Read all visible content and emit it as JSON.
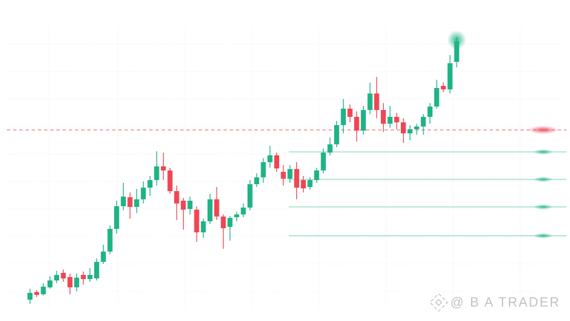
{
  "chart_data": {
    "type": "candlestick",
    "watermark": "@ B A TRADER",
    "xlim": [
      -4.5,
      81
    ],
    "xticks": [
      2.9,
      13.2,
      23.3,
      33.3,
      43.3,
      53.4,
      63.5,
      73.5
    ],
    "ylim": [
      5,
      111
    ],
    "yticks": [
      10,
      20,
      30,
      40,
      50,
      60,
      70,
      80,
      90,
      100
    ],
    "grid": true,
    "up_color": "#1fb386",
    "down_color": "#ef4654",
    "open": [
      7,
      9.75,
      9,
      11.5,
      14,
      16.75,
      15.25,
      11.5,
      16,
      14.5,
      14.75,
      20.75,
      24.5,
      32.75,
      41,
      44.25,
      40.75,
      43.5,
      47.75,
      50.5,
      55.5,
      54,
      46.5,
      43,
      40,
      39.75,
      31.5,
      35.5,
      43.5,
      37.25,
      33.5,
      37,
      38,
      40.5,
      49,
      51.5,
      57,
      59.5,
      53.5,
      51,
      54.5,
      50.5,
      48,
      50.5,
      54,
      60.5,
      63.5,
      70.5,
      76.5,
      73.5,
      68.5,
      76,
      82,
      76,
      71,
      73.5,
      71.5,
      67.5,
      69,
      70,
      73.5,
      77.25,
      84.75,
      83.5,
      93.5
    ],
    "high": [
      11,
      10.5,
      13,
      15.5,
      17.5,
      18,
      16.5,
      16.5,
      17.25,
      18.5,
      22,
      27,
      34,
      43,
      49.5,
      46,
      47.25,
      50,
      52,
      61,
      60.5,
      55,
      48.5,
      44,
      44.5,
      41,
      36.5,
      45.5,
      48,
      38,
      37.5,
      39,
      42,
      50.5,
      53,
      58.5,
      63,
      60.5,
      56,
      56,
      57,
      52,
      51.5,
      55,
      62,
      66,
      72,
      80,
      78,
      75.5,
      77.5,
      86,
      88,
      78.5,
      77.5,
      75,
      73,
      70.5,
      71,
      74.5,
      78.5,
      87,
      86,
      96,
      102.5
    ],
    "low": [
      5.5,
      8,
      8.5,
      11,
      13,
      13.5,
      9,
      10,
      12.5,
      13.5,
      14,
      20,
      23.5,
      31,
      39.5,
      36.5,
      38.5,
      42,
      44.75,
      48.5,
      50.5,
      45.5,
      36,
      32.5,
      38,
      28,
      29.5,
      34.5,
      36,
      25.5,
      28.5,
      35.5,
      37,
      39.5,
      48,
      49.5,
      55,
      53.5,
      48.5,
      49.5,
      43.5,
      46,
      47,
      49.5,
      53,
      59.5,
      62.5,
      67.5,
      71.5,
      64.5,
      67,
      74.5,
      73,
      68,
      69.5,
      69,
      64,
      65,
      67,
      67,
      71,
      76.5,
      82.5,
      82,
      91.5
    ],
    "close": [
      9.5,
      8.75,
      11.75,
      14,
      16,
      14.75,
      11.5,
      15,
      14.5,
      16,
      20.75,
      24.5,
      32.75,
      41,
      44.5,
      40.75,
      43.5,
      47.75,
      50.5,
      55.5,
      54,
      46.5,
      42,
      39.75,
      43,
      31.5,
      35.5,
      43.5,
      37.25,
      33,
      36.75,
      38,
      40.5,
      49,
      51.5,
      57,
      59.5,
      54.75,
      51,
      54.5,
      47.75,
      47.5,
      50.5,
      54,
      60.5,
      63.5,
      70.5,
      76.5,
      73.5,
      68.5,
      76,
      82,
      76,
      71,
      73.5,
      71.5,
      67.5,
      69,
      70,
      73.5,
      77.25,
      84,
      83.5,
      93,
      101
    ],
    "levels": [
      {
        "value": 68.75,
        "color": "#e0464f",
        "style": "dashed"
      },
      {
        "value": 60.75,
        "color": "#1fb386",
        "style": "solid"
      },
      {
        "value": 50.75,
        "color": "#1fb386",
        "style": "solid"
      },
      {
        "value": 40.75,
        "color": "#1fb386",
        "style": "solid"
      },
      {
        "value": 30.25,
        "color": "#1fb386",
        "style": "solid"
      }
    ]
  }
}
